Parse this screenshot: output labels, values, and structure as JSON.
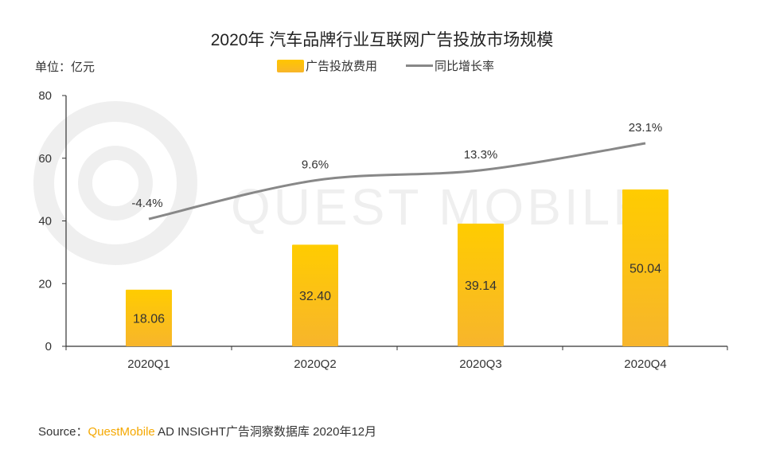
{
  "colors": {
    "bar_top": "#ffcc00",
    "bar_bottom": "#f7b52c",
    "line": "#888888",
    "axis": "#333333"
  },
  "chart_data": {
    "type": "bar",
    "title": "2020年 汽车品牌行业互联网广告投放市场规模",
    "unit_label": "单位：亿元",
    "categories": [
      "2020Q1",
      "2020Q2",
      "2020Q3",
      "2020Q4"
    ],
    "ylim": [
      0,
      80
    ],
    "yticks": [
      0,
      20,
      40,
      60,
      80
    ],
    "series": [
      {
        "name": "广告投放费用",
        "type": "bar",
        "values": [
          18.06,
          32.4,
          39.14,
          50.04
        ],
        "labels": [
          "18.06",
          "32.40",
          "39.14",
          "50.04"
        ]
      },
      {
        "name": "同比增长率",
        "type": "line",
        "values": [
          -4.4,
          9.6,
          13.3,
          23.1
        ],
        "labels": [
          "-4.4%",
          "9.6%",
          "13.3%",
          "23.1%"
        ]
      }
    ],
    "legend_position": "top-center"
  },
  "source": {
    "prefix": "Source：",
    "brand": "QuestMobile",
    "rest": " AD INSIGHT广告洞察数据库 2020年12月"
  },
  "watermark": "QUEST MOBILE"
}
